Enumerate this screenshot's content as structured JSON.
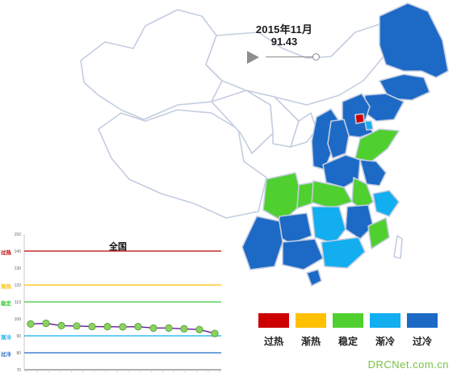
{
  "period": "2015年11月",
  "index_value": "91.43",
  "legend": [
    {
      "label": "过热",
      "color": "#cc0000"
    },
    {
      "label": "渐热",
      "color": "#ffc000"
    },
    {
      "label": "稳定",
      "color": "#4fd02f"
    },
    {
      "label": "渐冷",
      "color": "#12aef0"
    },
    {
      "label": "过冷",
      "color": "#1d6ac6"
    }
  ],
  "map": {
    "border_color": "#c3cde0",
    "region_status": {
      "heilongjiang": "过冷",
      "jilin": "过冷",
      "liaoning": "过冷",
      "beijing": "过热",
      "tianjin": "渐冷",
      "hebei": "过冷",
      "shandong": "稳定",
      "shanxi": "过冷",
      "henan": "过冷",
      "anhui": "稳定",
      "jiangsu": "过冷",
      "hubei": "稳定",
      "zhejiang": "渐冷",
      "chongqing": "稳定",
      "sichuan": "稳定",
      "hunan": "渐冷",
      "jiangxi": "过冷",
      "fujian": "稳定",
      "guizhou": "过冷",
      "yunnan": "过冷",
      "guangxi": "过冷",
      "guangdong": "渐冷",
      "hainan": "过冷",
      "shaanxi": "过冷"
    }
  },
  "watermark": "DRCNet.com.cn",
  "chart_data": {
    "type": "line",
    "title": "全国",
    "ylim": [
      70,
      150
    ],
    "yticks": [
      70,
      80,
      90,
      100,
      110,
      120,
      130,
      140,
      150
    ],
    "zones": [
      {
        "label": "过热",
        "value": 140,
        "color": "#c00000"
      },
      {
        "label": "渐热",
        "value": 120,
        "color": "#ffc000"
      },
      {
        "label": "稳定",
        "value": 110,
        "color": "#3cc83c"
      },
      {
        "label": "渐冷",
        "value": 90,
        "color": "#12aef0"
      },
      {
        "label": "过冷",
        "value": 80,
        "color": "#1d6ac6"
      }
    ],
    "series": [
      {
        "line_color": "#6a1b9a",
        "marker_color": "#8bd25e",
        "values": [
          97,
          97.4,
          96,
          95.8,
          95.5,
          95.4,
          95.3,
          95.4,
          94.6,
          94.6,
          94.1,
          93.7,
          91.4
        ]
      }
    ],
    "grid": false,
    "legend": "none"
  }
}
